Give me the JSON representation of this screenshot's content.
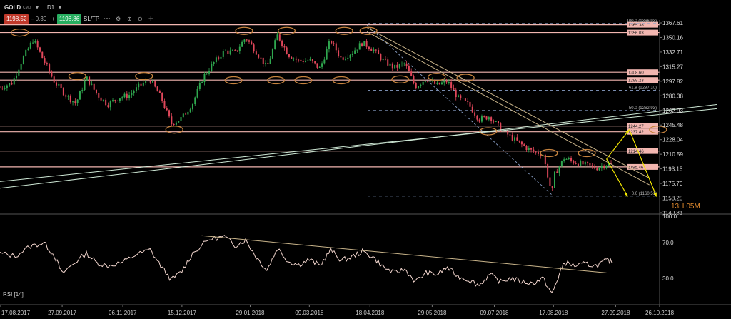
{
  "toolbar": {
    "symbol": "GOLD",
    "cmd": "CMD",
    "timeframe": "D1",
    "bid": "1198.52",
    "spread": "0.30",
    "ask": "1198.86",
    "sltp": "SL/TP",
    "colors": {
      "bid_bg": "#c0392b",
      "ask_bg": "#27ae60"
    }
  },
  "countdown": {
    "hours": "13H",
    "minutes": "05M"
  },
  "chart_data": [
    {
      "type": "candlestick",
      "title": "",
      "xlabel": "",
      "ylabel": "",
      "ylim": [
        1140.81,
        1367.61
      ],
      "y_ticks": [
        "1367.61",
        "1350.16",
        "1332.71",
        "1315.27",
        "1297.82",
        "1280.38",
        "1262.93",
        "1245.48",
        "1228.04",
        "1210.59",
        "1193.15",
        "1175.70",
        "1158.25",
        "1140.81"
      ],
      "x_ticks": [
        "17.08.2017",
        "27.09.2017",
        "06.11.2017",
        "15.12.2017",
        "29.01.2018",
        "09.03.2018",
        "18.04.2018",
        "29.05.2018",
        "09.07.2018",
        "17.08.2018",
        "27.09.2018",
        "26.10.2018"
      ],
      "close_path": [
        [
          "17.08.2017",
          1290
        ],
        [
          "25.08.2017",
          1296
        ],
        [
          "01.09.2017",
          1325
        ],
        [
          "08.09.2017",
          1348
        ],
        [
          "15.09.2017",
          1322
        ],
        [
          "22.09.2017",
          1297
        ],
        [
          "29.09.2017",
          1282
        ],
        [
          "06.10.2017",
          1271
        ],
        [
          "13.10.2017",
          1302
        ],
        [
          "20.10.2017",
          1282
        ],
        [
          "27.10.2017",
          1270
        ],
        [
          "03.11.2017",
          1278
        ],
        [
          "10.11.2017",
          1281
        ],
        [
          "17.11.2017",
          1292
        ],
        [
          "24.11.2017",
          1300
        ],
        [
          "01.12.2017",
          1279
        ],
        [
          "08.12.2017",
          1247
        ],
        [
          "15.12.2017",
          1254
        ],
        [
          "22.12.2017",
          1271
        ],
        [
          "29.12.2017",
          1303
        ],
        [
          "05.01.2018",
          1320
        ],
        [
          "12.01.2018",
          1334
        ],
        [
          "19.01.2018",
          1332
        ],
        [
          "26.01.2018",
          1350
        ],
        [
          "02.02.2018",
          1333
        ],
        [
          "09.02.2018",
          1314
        ],
        [
          "16.02.2018",
          1353
        ],
        [
          "23.02.2018",
          1330
        ],
        [
          "02.03.2018",
          1322
        ],
        [
          "09.03.2018",
          1323
        ],
        [
          "16.03.2018",
          1313
        ],
        [
          "23.03.2018",
          1347
        ],
        [
          "30.03.2018",
          1325
        ],
        [
          "06.04.2018",
          1332
        ],
        [
          "13.04.2018",
          1344
        ],
        [
          "20.04.2018",
          1336
        ],
        [
          "27.04.2018",
          1322
        ],
        [
          "04.05.2018",
          1314
        ],
        [
          "11.05.2018",
          1319
        ],
        [
          "18.05.2018",
          1291
        ],
        [
          "25.05.2018",
          1301
        ],
        [
          "01.06.2018",
          1293
        ],
        [
          "08.06.2018",
          1298
        ],
        [
          "15.06.2018",
          1278
        ],
        [
          "22.06.2018",
          1270
        ],
        [
          "29.06.2018",
          1252
        ],
        [
          "06.07.2018",
          1256
        ],
        [
          "13.07.2018",
          1241
        ],
        [
          "20.07.2018",
          1231
        ],
        [
          "27.07.2018",
          1222
        ],
        [
          "03.08.2018",
          1214
        ],
        [
          "10.08.2018",
          1211
        ],
        [
          "16.08.2018",
          1162
        ],
        [
          "17.08.2018",
          1184
        ],
        [
          "24.08.2018",
          1206
        ],
        [
          "31.08.2018",
          1201
        ],
        [
          "07.09.2018",
          1198
        ],
        [
          "14.09.2018",
          1194
        ],
        [
          "21.09.2018",
          1199
        ],
        [
          "25.09.2018",
          1198.52
        ]
      ],
      "horizontal_levels": [
        {
          "label": "1365.38",
          "value": 1365.38
        },
        {
          "label": "1356.03",
          "value": 1356.03
        },
        {
          "label": "1308.60",
          "value": 1308.6
        },
        {
          "label": "1299.23",
          "value": 1299.23
        },
        {
          "label": "1244.27",
          "value": 1244.27
        },
        {
          "label": "1237.42",
          "value": 1237.42
        },
        {
          "label": "1214.46",
          "value": 1214.46
        },
        {
          "label": "1195.46",
          "value": 1195.46
        }
      ],
      "fibonacci": [
        {
          "label": "100.0 (1366.93)",
          "value": 1366.93
        },
        {
          "label": "61.8 (1287.10)",
          "value": 1287.1
        },
        {
          "label": "50.0 (1262.93)",
          "value": 1262.93
        },
        {
          "label": "0.0 (1160.51)",
          "value": 1160.51
        }
      ],
      "colors": {
        "up": "#2fa84f",
        "down": "#e0475a",
        "level": "#f2b6b0",
        "ellipse": "#c7843f",
        "trend": "#c9b48a",
        "channel": "#cfe9d6",
        "arrow": "#f2e600",
        "fib": "#8aa0c8"
      }
    },
    {
      "type": "line",
      "title": "RSI [14]",
      "xlabel": "",
      "ylabel": "",
      "ylim": [
        0,
        100
      ],
      "y_ticks": [
        "100.0",
        "70.0",
        "30.0"
      ],
      "series": [
        {
          "values": [
            [
              "17.08.2017",
              58
            ],
            [
              "27.08.2017",
              55
            ],
            [
              "06.09.2017",
              66
            ],
            [
              "15.09.2017",
              70
            ],
            [
              "22.09.2017",
              55
            ],
            [
              "27.09.2017",
              35
            ],
            [
              "04.10.2017",
              46
            ],
            [
              "13.10.2017",
              58
            ],
            [
              "20.10.2017",
              47
            ],
            [
              "27.10.2017",
              44
            ],
            [
              "06.11.2017",
              48
            ],
            [
              "14.11.2017",
              56
            ],
            [
              "24.11.2017",
              62
            ],
            [
              "01.12.2017",
              44
            ],
            [
              "08.12.2017",
              28
            ],
            [
              "15.12.2017",
              38
            ],
            [
              "22.12.2017",
              58
            ],
            [
              "02.01.2018",
              74
            ],
            [
              "12.01.2018",
              77
            ],
            [
              "19.01.2018",
              67
            ],
            [
              "26.01.2018",
              73
            ],
            [
              "02.02.2018",
              54
            ],
            [
              "09.02.2018",
              39
            ],
            [
              "16.02.2018",
              64
            ],
            [
              "23.02.2018",
              49
            ],
            [
              "02.03.2018",
              45
            ],
            [
              "09.03.2018",
              51
            ],
            [
              "16.03.2018",
              44
            ],
            [
              "23.03.2018",
              62
            ],
            [
              "30.03.2018",
              50
            ],
            [
              "06.04.2018",
              54
            ],
            [
              "13.04.2018",
              60
            ],
            [
              "20.04.2018",
              54
            ],
            [
              "27.04.2018",
              42
            ],
            [
              "04.05.2018",
              36
            ],
            [
              "11.05.2018",
              40
            ],
            [
              "18.05.2018",
              26
            ],
            [
              "25.05.2018",
              36
            ],
            [
              "01.06.2018",
              34
            ],
            [
              "08.06.2018",
              42
            ],
            [
              "15.06.2018",
              32
            ],
            [
              "22.06.2018",
              28
            ],
            [
              "29.06.2018",
              22
            ],
            [
              "06.07.2018",
              34
            ],
            [
              "13.07.2018",
              26
            ],
            [
              "20.07.2018",
              30
            ],
            [
              "27.07.2018",
              26
            ],
            [
              "03.08.2018",
              24
            ],
            [
              "10.08.2018",
              30
            ],
            [
              "16.08.2018",
              12
            ],
            [
              "20.08.2018",
              30
            ],
            [
              "24.08.2018",
              48
            ],
            [
              "31.08.2018",
              44
            ],
            [
              "07.09.2018",
              46
            ],
            [
              "14.09.2018",
              44
            ],
            [
              "21.09.2018",
              50
            ],
            [
              "25.09.2018",
              48
            ]
          ]
        }
      ],
      "trendline": [
        [
          "28.12.2017",
          78
        ],
        [
          "21.09.2018",
          36
        ]
      ],
      "colors": {
        "line": "#f4d7cf",
        "trend": "#c9b48a"
      }
    }
  ]
}
